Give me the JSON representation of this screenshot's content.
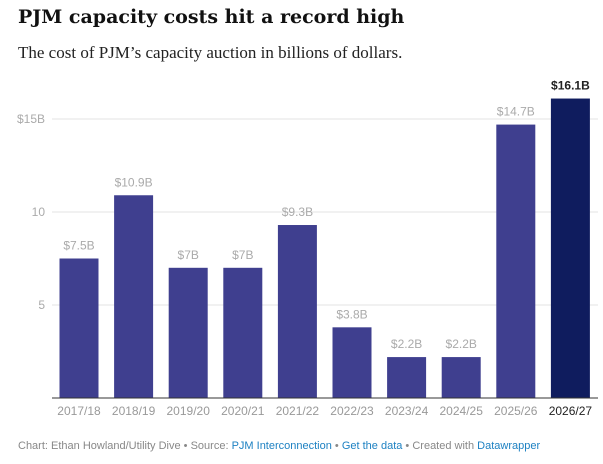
{
  "title": "PJM capacity costs hit a record high",
  "subtitle": "The cost of PJM’s capacity auction in billions of dollars.",
  "chart_data": {
    "type": "bar",
    "categories": [
      "2017/18",
      "2018/19",
      "2019/20",
      "2020/21",
      "2021/22",
      "2022/23",
      "2023/24",
      "2024/25",
      "2025/26",
      "2026/27"
    ],
    "values": [
      7.5,
      10.9,
      7,
      7,
      9.3,
      3.8,
      2.2,
      2.2,
      14.7,
      16.1
    ],
    "labels": [
      "$7.5B",
      "$10.9B",
      "$7B",
      "$7B",
      "$9.3B",
      "$3.8B",
      "$2.2B",
      "$2.2B",
      "$14.7B",
      "$16.1B"
    ],
    "yticks": [
      {
        "v": 5,
        "label": "5"
      },
      {
        "v": 10,
        "label": "10"
      },
      {
        "v": 15,
        "label": "$15B"
      }
    ],
    "ylim": [
      0,
      15
    ],
    "xlabel": "",
    "ylabel": "",
    "colors": {
      "bar": "#3f3f8f",
      "highlight": "#0f1c5e",
      "label": "#aaaaaa",
      "highlight_label": "#222222"
    },
    "highlight_index": 9
  },
  "footer": {
    "chart": "Chart: Ethan Howland/Utility Dive",
    "source_label": "Source:",
    "source": "PJM Interconnection",
    "get_data": "Get the data",
    "created": "Created with",
    "tool": "Datawrapper",
    "sep": " • "
  }
}
